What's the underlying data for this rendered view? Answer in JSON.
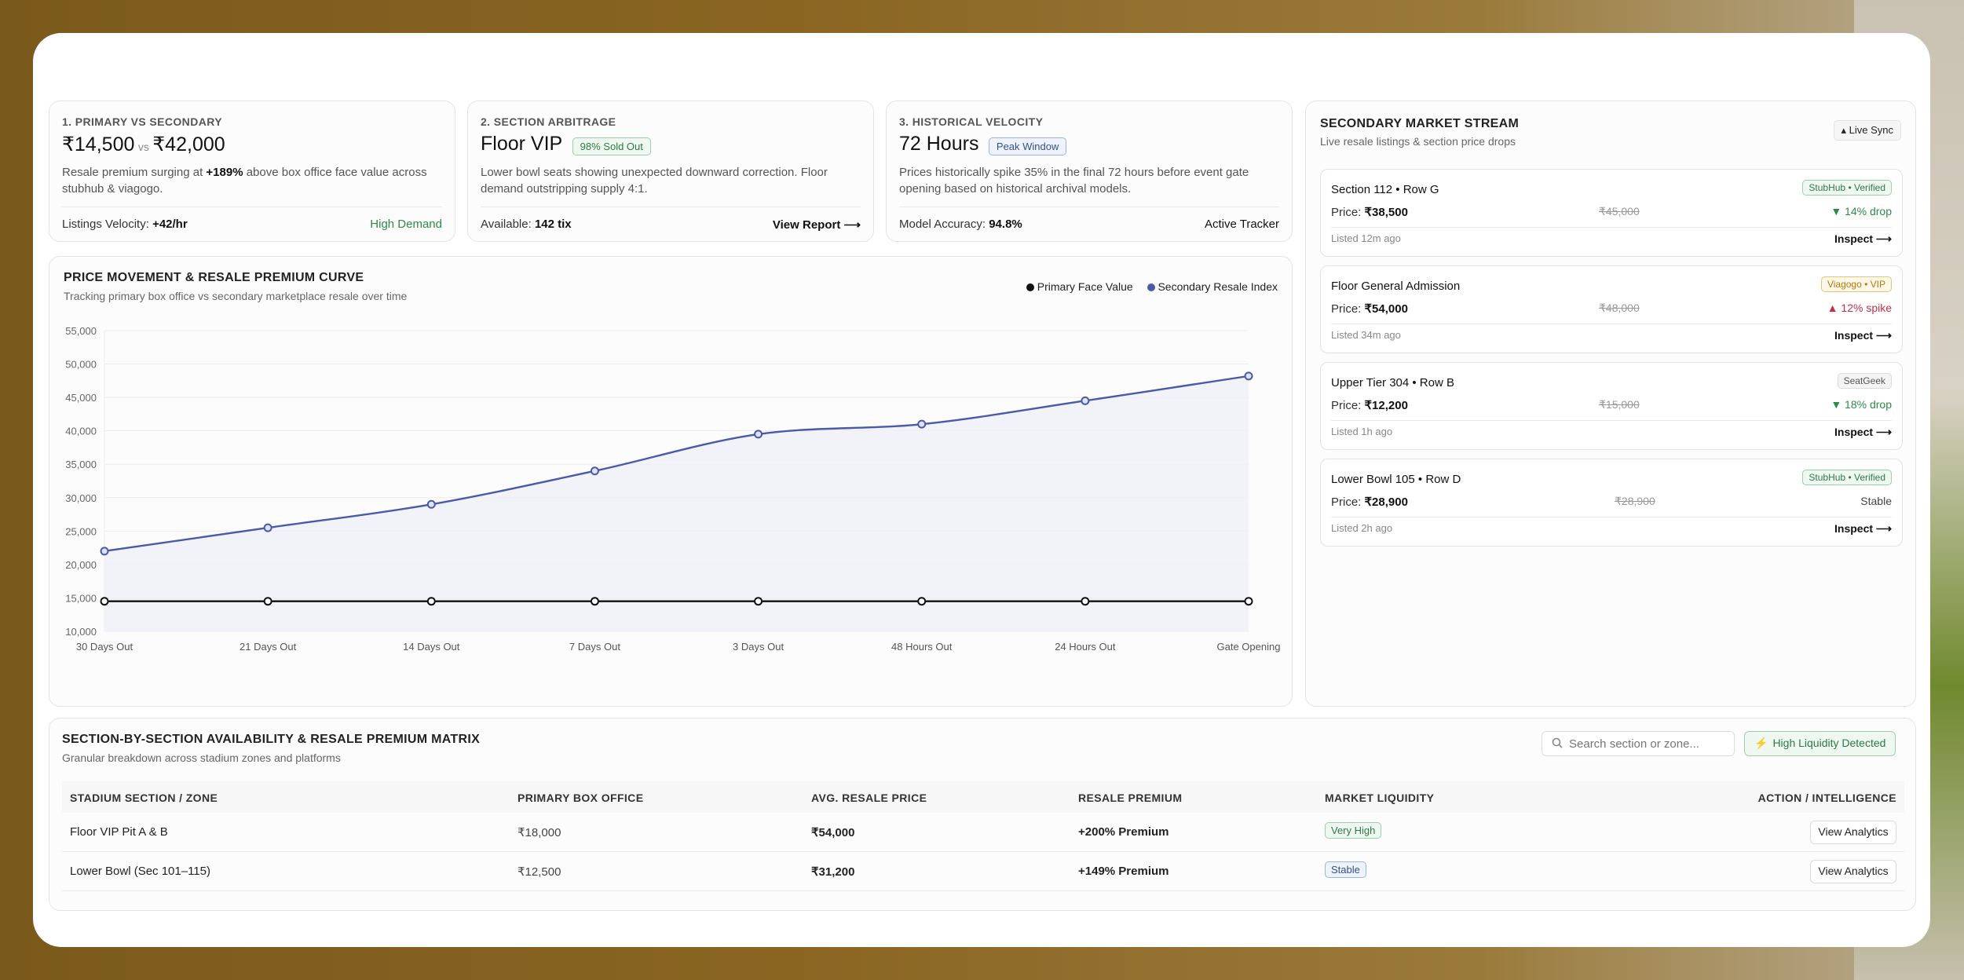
{
  "cards": [
    {
      "eyebrow": "1. PRIMARY VS SECONDARY",
      "big_a": "₹14,500",
      "vs": "vs",
      "big_b": "₹42,000",
      "desc_pre": "Resale premium surging at ",
      "desc_bold": "+189%",
      "desc_post": " above box office face value across stubhub & viagogo.",
      "footer_label": "Listings Velocity: ",
      "footer_value": "+42/hr",
      "footer_right": "High Demand"
    },
    {
      "eyebrow": "2. SECTION ARBITRAGE",
      "big": "Floor VIP",
      "badge": "98% Sold Out",
      "desc": "Lower bowl seats showing unexpected downward correction. Floor demand outstripping supply 4:1.",
      "footer_label": "Available: ",
      "footer_value": "142 tix",
      "footer_right": "View Report ⟶"
    },
    {
      "eyebrow": "3. HISTORICAL VELOCITY",
      "big": "72 Hours",
      "badge": "Peak Window",
      "desc": "Prices historically spike 35% in the final 72 hours before event gate opening based on historical archival models.",
      "footer_label": "Model Accuracy: ",
      "footer_value": "94.8%",
      "footer_right": "Active Tracker"
    }
  ],
  "chart": {
    "title": "PRICE MOVEMENT & RESALE PREMIUM CURVE",
    "subtitle": "Tracking primary box office vs secondary marketplace resale over time",
    "legend_primary": "Primary Face Value",
    "legend_secondary": "Secondary Resale Index"
  },
  "chart_data": {
    "type": "line",
    "x": [
      "30 Days Out",
      "21 Days Out",
      "14 Days Out",
      "7 Days Out",
      "3 Days Out",
      "48 Hours Out",
      "24 Hours Out",
      "Gate Opening"
    ],
    "y_ticks": [
      "10,000",
      "15,000",
      "20,000",
      "25,000",
      "30,000",
      "35,000",
      "40,000",
      "45,000",
      "50,000",
      "55,000"
    ],
    "ylim": [
      10000,
      55000
    ],
    "grid": true,
    "series": [
      {
        "name": "Primary Face Value",
        "color": "#111111",
        "values": [
          14500,
          14500,
          14500,
          14500,
          14500,
          14500,
          14500,
          14500
        ]
      },
      {
        "name": "Secondary Resale Index",
        "color": "#4a5aa8",
        "values": [
          22000,
          25500,
          29000,
          34000,
          39500,
          41000,
          44500,
          48200
        ]
      }
    ],
    "legend": "top-right"
  },
  "stream": {
    "title": "SECONDARY MARKET STREAM",
    "subtitle": "Live resale listings & section price drops",
    "sync": "▴ Live Sync",
    "items": [
      {
        "name": "Section 112 • Row G",
        "badge": "StubHub • Verified",
        "badge_kind": "green",
        "price_label": "Price: ",
        "price": "₹38,500",
        "old": "₹45,000",
        "change": "▼ 14% drop",
        "change_kind": "green",
        "listed": "Listed 12m ago",
        "action": "Inspect ⟶"
      },
      {
        "name": "Floor General Admission",
        "badge": "Viagogo • VIP",
        "badge_kind": "amber",
        "price_label": "Price: ",
        "price": "₹54,000",
        "old": "₹48,000",
        "change": "▲ 12% spike",
        "change_kind": "red",
        "listed": "Listed 34m ago",
        "action": "Inspect ⟶"
      },
      {
        "name": "Upper Tier 304 • Row B",
        "badge": "SeatGeek",
        "badge_kind": "gray",
        "price_label": "Price: ",
        "price": "₹12,200",
        "old": "₹15,000",
        "change": "▼ 18% drop",
        "change_kind": "green",
        "listed": "Listed 1h ago",
        "action": "Inspect ⟶"
      },
      {
        "name": "Lower Bowl 105 • Row D",
        "badge": "StubHub • Verified",
        "badge_kind": "green",
        "price_label": "Price: ",
        "price": "₹28,900",
        "old": "₹28,900",
        "change": "Stable",
        "change_kind": "plain",
        "listed": "Listed 2h ago",
        "action": "Inspect ⟶"
      }
    ]
  },
  "matrix": {
    "title": "SECTION-BY-SECTION AVAILABILITY & RESALE PREMIUM MATRIX",
    "subtitle": "Granular breakdown across stadium zones and platforms",
    "search_placeholder": "Search section or zone...",
    "liquidity_button": "High Liquidity Detected",
    "columns": [
      "STADIUM SECTION / ZONE",
      "PRIMARY BOX OFFICE",
      "AVG. RESALE PRICE",
      "RESALE PREMIUM",
      "MARKET LIQUIDITY",
      "ACTION / INTELLIGENCE"
    ],
    "rows": [
      {
        "section": "Floor VIP Pit A & B",
        "primary": "₹18,000",
        "resale": "₹54,000",
        "premium": "+200% Premium",
        "liquidity": "Very High",
        "liquidity_kind": "green",
        "action": "View Analytics"
      },
      {
        "section": "Lower Bowl (Sec 101–115)",
        "primary": "₹12,500",
        "resale": "₹31,200",
        "premium": "+149% Premium",
        "liquidity": "Stable",
        "liquidity_kind": "blue",
        "action": "View Analytics"
      }
    ]
  }
}
